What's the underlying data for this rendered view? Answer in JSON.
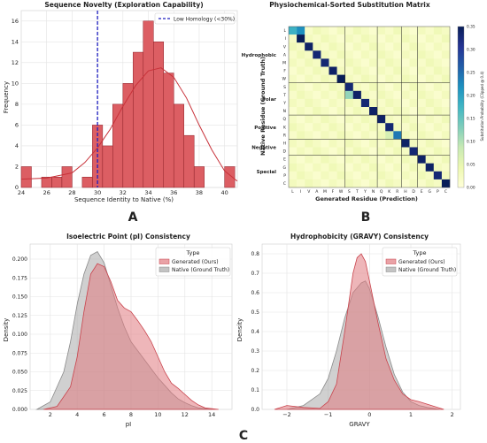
{
  "panel_labels": [
    "A",
    "B",
    "C"
  ],
  "legend_titles": {
    "c1": "Type",
    "c2": "Type"
  },
  "colors": {
    "generated_fill": "#e07a80",
    "generated_line": "#c9444d",
    "native_fill": "#a9a9a9",
    "native_line": "#8a8a8a",
    "hist_bar": "#dc5e63",
    "hist_edge": "#8c1f27",
    "kde_line": "#c8323a",
    "ref_line": "#1f1fbf",
    "grid": "#e3e3e3"
  },
  "chart_data": [
    {
      "id": "novelty",
      "type": "bar",
      "title": "Sequence Novelty (Exploration Capability)",
      "xlabel": "Sequence Identity to Native (%)",
      "ylabel": "Frequency",
      "xlim": [
        24,
        41
      ],
      "ylim": [
        0,
        17
      ],
      "xticks": [
        "24",
        "26",
        "28",
        "30",
        "32",
        "34",
        "36",
        "38",
        "40"
      ],
      "yticks": [
        "0",
        "2",
        "4",
        "6",
        "8",
        "10",
        "12",
        "14",
        "16"
      ],
      "bin_edges": [
        24.0,
        24.8,
        25.6,
        26.4,
        27.2,
        28.0,
        28.8,
        29.6,
        30.4,
        31.2,
        32.0,
        32.8,
        33.6,
        34.4,
        35.2,
        36.0,
        36.8,
        37.6,
        38.4,
        39.2,
        40.0,
        40.8
      ],
      "values": [
        2,
        0,
        1,
        1,
        2,
        0,
        1,
        6,
        4,
        8,
        10,
        13,
        16,
        14,
        11,
        8,
        5,
        2,
        0,
        0,
        2
      ],
      "kde": {
        "x": [
          24,
          26,
          28,
          29,
          30,
          31,
          32,
          33,
          34,
          35,
          36,
          37,
          38,
          39,
          40,
          41
        ],
        "y": [
          0.8,
          0.9,
          1.4,
          2.4,
          3.8,
          5.6,
          7.8,
          9.8,
          11.2,
          11.5,
          10.6,
          8.6,
          6.0,
          3.6,
          1.6,
          0.6
        ]
      },
      "reference_line": {
        "x": 30,
        "label": "Low Homology (<30%)"
      },
      "grid": true,
      "legend_position": "top-right"
    },
    {
      "id": "substitution",
      "type": "heatmap",
      "title": "Physiochemical-Sorted Substitution Matrix",
      "xlabel": "Generated Residue (Prediction)",
      "ylabel": "Native Residue (Ground Truth)",
      "residues": [
        "L",
        "I",
        "V",
        "A",
        "M",
        "F",
        "W",
        "S",
        "T",
        "Y",
        "N",
        "Q",
        "K",
        "R",
        "H",
        "D",
        "E",
        "G",
        "P",
        "C"
      ],
      "groups": [
        "Hydrophobic",
        "Polar",
        "Positive",
        "Negative",
        "Special"
      ],
      "diagonal": [
        0.18,
        0.35,
        0.34,
        0.33,
        0.33,
        0.34,
        0.35,
        0.33,
        0.34,
        0.33,
        0.34,
        0.34,
        0.33,
        0.24,
        0.34,
        0.33,
        0.34,
        0.34,
        0.33,
        0.35
      ],
      "off_diagonal": [
        {
          "row": "L",
          "col": "I",
          "value": 0.22
        },
        {
          "row": "T",
          "col": "S",
          "value": 0.12
        },
        {
          "row": "R",
          "col": "K",
          "value": 0.07
        }
      ],
      "colorbar": {
        "label": "Substitution Probability (Clipped @ 0.4)",
        "range": [
          0,
          0.35
        ],
        "ticks": [
          "0.00",
          "0.05",
          "0.10",
          "0.15",
          "0.20",
          "0.25",
          "0.30",
          "0.35"
        ]
      }
    },
    {
      "id": "pi",
      "type": "area",
      "title": "Isoelectric Point (pI) Consistency",
      "xlabel": "pI",
      "ylabel": "Density",
      "xlim": [
        0.5,
        15.5
      ],
      "ylim": [
        0,
        0.22
      ],
      "xticks": [
        "2",
        "4",
        "6",
        "8",
        "10",
        "12",
        "14"
      ],
      "yticks": [
        "0.000",
        "0.025",
        "0.050",
        "0.075",
        "0.100",
        "0.125",
        "0.150",
        "0.175",
        "0.200"
      ],
      "series": [
        {
          "name": "Generated (Ours)",
          "x": [
            1.5,
            2.5,
            3.5,
            4.0,
            4.5,
            5.0,
            5.5,
            6.0,
            6.5,
            7.0,
            7.5,
            8.0,
            8.5,
            9.0,
            9.5,
            10.0,
            10.5,
            11.0,
            11.5,
            12.0,
            12.5,
            13.0,
            13.5,
            14.5
          ],
          "y": [
            0.0,
            0.004,
            0.03,
            0.07,
            0.13,
            0.18,
            0.194,
            0.19,
            0.17,
            0.145,
            0.135,
            0.13,
            0.118,
            0.105,
            0.09,
            0.07,
            0.05,
            0.035,
            0.028,
            0.02,
            0.012,
            0.006,
            0.002,
            0.0
          ]
        },
        {
          "name": "Native (Ground Truth)",
          "x": [
            1.0,
            2.0,
            3.0,
            3.5,
            4.0,
            4.5,
            5.0,
            5.5,
            6.0,
            6.5,
            7.0,
            7.5,
            8.0,
            8.5,
            9.0,
            9.5,
            10.0,
            10.5,
            11.0,
            11.5,
            12.0,
            12.5,
            13.0,
            14.0
          ],
          "y": [
            0.0,
            0.01,
            0.05,
            0.09,
            0.14,
            0.18,
            0.205,
            0.21,
            0.195,
            0.165,
            0.135,
            0.11,
            0.09,
            0.078,
            0.066,
            0.054,
            0.042,
            0.032,
            0.022,
            0.014,
            0.009,
            0.005,
            0.002,
            0.0
          ]
        }
      ],
      "grid": true,
      "legend_position": "top-right"
    },
    {
      "id": "gravy",
      "type": "area",
      "title": "Hydrophobicity (GRAVY) Consistency",
      "xlabel": "GRAVY",
      "ylabel": "Density",
      "xlim": [
        -2.6,
        2.2
      ],
      "ylim": [
        0,
        0.85
      ],
      "xticks": [
        "−2",
        "−1",
        "0",
        "1",
        "2"
      ],
      "yticks": [
        "0.0",
        "0.1",
        "0.2",
        "0.3",
        "0.4",
        "0.5",
        "0.6",
        "0.7",
        "0.8"
      ],
      "series": [
        {
          "name": "Generated (Ours)",
          "x": [
            -2.3,
            -2.0,
            -1.6,
            -1.2,
            -1.0,
            -0.8,
            -0.6,
            -0.4,
            -0.3,
            -0.2,
            -0.1,
            0.0,
            0.2,
            0.4,
            0.6,
            0.8,
            1.0,
            1.2,
            1.5,
            1.8
          ],
          "y": [
            0.0,
            0.02,
            0.01,
            0.005,
            0.04,
            0.13,
            0.4,
            0.7,
            0.78,
            0.8,
            0.76,
            0.66,
            0.45,
            0.26,
            0.15,
            0.08,
            0.05,
            0.04,
            0.02,
            0.0
          ]
        },
        {
          "name": "Native (Ground Truth)",
          "x": [
            -2.0,
            -1.6,
            -1.2,
            -1.0,
            -0.8,
            -0.6,
            -0.4,
            -0.2,
            -0.1,
            0.0,
            0.2,
            0.4,
            0.6,
            0.8,
            1.0,
            1.2,
            1.4,
            1.7
          ],
          "y": [
            0.0,
            0.02,
            0.08,
            0.16,
            0.3,
            0.47,
            0.6,
            0.65,
            0.66,
            0.62,
            0.48,
            0.32,
            0.18,
            0.09,
            0.04,
            0.02,
            0.01,
            0.0
          ]
        }
      ],
      "grid": true,
      "legend_position": "top-right"
    }
  ]
}
